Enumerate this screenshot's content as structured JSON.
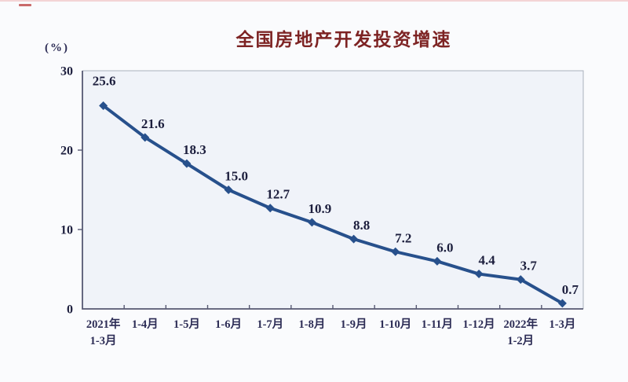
{
  "page": {
    "accent_top_dash_color": "#c96a6a"
  },
  "chart_data": {
    "type": "line",
    "title": "全国房地产开发投资增速",
    "ylabel": "(%)",
    "xlabel": "",
    "categories": [
      "2021年\n1-3月",
      "1-4月",
      "1-5月",
      "1-6月",
      "1-7月",
      "1-8月",
      "1-9月",
      "1-10月",
      "1-11月",
      "1-12月",
      "2022年\n1-2月",
      "1-3月"
    ],
    "values": [
      25.6,
      21.6,
      18.3,
      15.0,
      12.7,
      10.9,
      8.8,
      7.2,
      6.0,
      4.4,
      3.7,
      0.7
    ],
    "data_labels": [
      "25.6",
      "21.6",
      "18.3",
      "15.0",
      "12.7",
      "10.9",
      "8.8",
      "7.2",
      "6.0",
      "4.4",
      "3.7",
      "0.7"
    ],
    "ylim": [
      0,
      30
    ],
    "yticks": [
      0,
      10,
      20,
      30
    ],
    "grid": false,
    "legend": "none",
    "line_color": "#27508c",
    "marker": "diamond",
    "plot_fill": "#f0f3f9",
    "axis_dark_color": "#565872",
    "axis_light_color": "#aab0bd",
    "title_color": "#7d2323",
    "label_color": "#1c1e3d"
  }
}
